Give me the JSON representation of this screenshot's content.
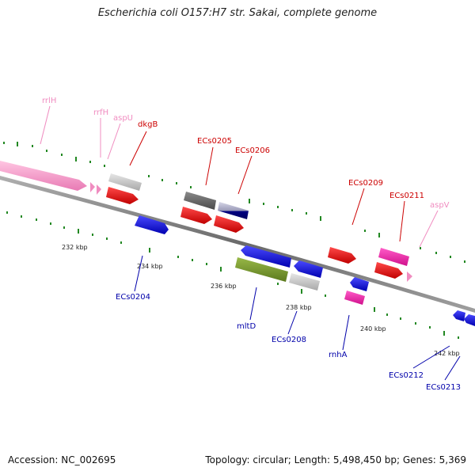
{
  "title": "Escherichia coli O157:H7 str. Sakai, complete genome",
  "footer": {
    "accession": "Accession: NC_002695",
    "topology": "Topology: circular; Length: 5,498,450 bp; Genes: 5,369"
  },
  "colors": {
    "rna": "#f08cc0",
    "red_label": "#cc0000",
    "blue_label": "#0000aa",
    "backbone": "#888888",
    "ticks": "#228822"
  },
  "scale_labels": [
    "232 kbp",
    "234 kbp",
    "236 kbp",
    "238 kbp",
    "240 kbp",
    "242 kbp"
  ],
  "outer_labels": [
    {
      "text": "rrlH",
      "color": "#f08cc0"
    },
    {
      "text": "rrfH",
      "color": "#f08cc0"
    },
    {
      "text": "aspU",
      "color": "#f08cc0"
    },
    {
      "text": "dkgB",
      "color": "#cc0000"
    },
    {
      "text": "ECs0205",
      "color": "#cc0000"
    },
    {
      "text": "ECs0206",
      "color": "#cc0000"
    },
    {
      "text": "ECs0209",
      "color": "#cc0000"
    },
    {
      "text": "ECs0211",
      "color": "#cc0000"
    },
    {
      "text": "aspV",
      "color": "#f08cc0"
    }
  ],
  "inner_labels": [
    {
      "text": "ECs0204",
      "color": "#0000aa"
    },
    {
      "text": "mltD",
      "color": "#0000aa"
    },
    {
      "text": "ECs0208",
      "color": "#0000aa"
    },
    {
      "text": "rnhA",
      "color": "#0000aa"
    },
    {
      "text": "ECs0212",
      "color": "#0000aa"
    },
    {
      "text": "ECs0213",
      "color": "#0000aa"
    }
  ]
}
